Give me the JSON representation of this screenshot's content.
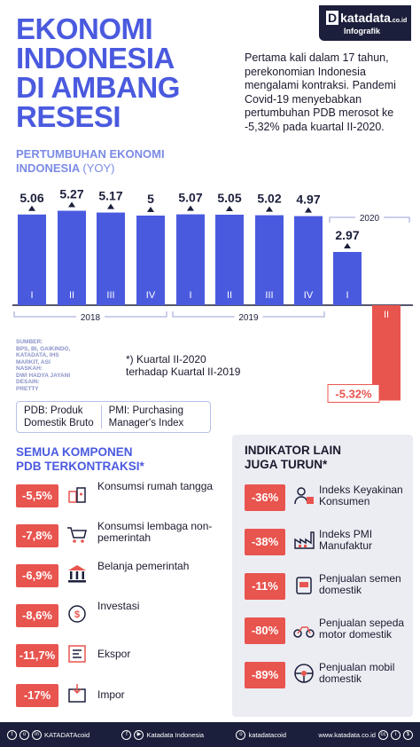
{
  "header": {
    "title_lines": [
      "EKONOMI",
      "INDONESIA",
      "DI AMBANG",
      "RESESI"
    ],
    "logo_brand": "katadata",
    "logo_suffix": ".co.id",
    "logo_sub": "Infografik",
    "intro": "Pertama kali dalam 17 tahun, perekonomian Indonesia mengalami kontraksi. Pandemi Covid-19 menyebabkan pertumbuhan PDB merosot ke -5,32% pada kuartal II-2020."
  },
  "chart_section": {
    "title_line1": "PERTUMBUHAN EKONOMI",
    "title_line2": "INDONESIA",
    "title_suffix": "(YOY)"
  },
  "chart_data": {
    "type": "bar",
    "title": "PERTUMBUHAN EKONOMI INDONESIA (YOY)",
    "categories": [
      "I",
      "II",
      "III",
      "IV",
      "I",
      "II",
      "III",
      "IV",
      "I",
      "II"
    ],
    "values": [
      5.06,
      5.27,
      5.17,
      5.0,
      5.07,
      5.05,
      5.02,
      4.97,
      2.97,
      -5.32
    ],
    "value_labels": [
      "5.06",
      "5.27",
      "5.17",
      "5",
      "5.07",
      "5.05",
      "5.02",
      "4.97",
      "2.97",
      "-5.32%"
    ],
    "groups": [
      {
        "label": "2018",
        "categories": [
          "I",
          "II",
          "III",
          "IV"
        ]
      },
      {
        "label": "2019",
        "categories": [
          "I",
          "II",
          "III",
          "IV"
        ]
      },
      {
        "label": "2020",
        "categories": [
          "I",
          "II"
        ]
      }
    ],
    "colors": {
      "positive": "#4a5adf",
      "negative": "#e8544e"
    },
    "note": "*) Kuartal II-2020 terhadap Kuartal II-2019"
  },
  "source_text": {
    "lines": [
      "SUMBER:",
      "BPS, BI, GAIKINDO,",
      "KATADATA, IHS",
      "MARKIT, ASI",
      "NASKAH:",
      "DWI HADYA JAYANI",
      "DESAIN:",
      "PRETTY"
    ]
  },
  "abbreviations": [
    {
      "line1": "PDB: Produk",
      "line2": "Domestik Bruto"
    },
    {
      "line1": "PMI: Purchasing",
      "line2": "Manager's Index"
    }
  ],
  "components": {
    "title_line1": "SEMUA KOMPONEN",
    "title_line2": "PDB TERKONTRAKSI*",
    "items": [
      {
        "value": "-5,5%",
        "label": "Konsumsi rumah tangga",
        "icon": "shopping-icon"
      },
      {
        "value": "-7,8%",
        "label": "Konsumsi lembaga non-pemerintah",
        "icon": "cart-icon"
      },
      {
        "value": "-6,9%",
        "label": "Belanja pemerintah",
        "icon": "government-building-icon"
      },
      {
        "value": "-8,6%",
        "label": "Investasi",
        "icon": "investment-icon"
      },
      {
        "value": "-11,7%",
        "label": "Ekspor",
        "icon": "export-icon"
      },
      {
        "value": "-17%",
        "label": "Impor",
        "icon": "import-icon"
      }
    ]
  },
  "indicators": {
    "title_line1": "INDIKATOR LAIN",
    "title_line2": "JUGA TURUN*",
    "items": [
      {
        "value": "-36%",
        "label": "Indeks Keyakinan Konsumen",
        "icon": "consumer-icon"
      },
      {
        "value": "-38%",
        "label": "Indeks PMI Manufaktur",
        "icon": "factory-icon"
      },
      {
        "value": "-11%",
        "label": "Penjualan semen domestik",
        "icon": "cement-icon"
      },
      {
        "value": "-80%",
        "label": "Penjualan sepeda motor domestik",
        "icon": "motorcycle-icon"
      },
      {
        "value": "-89%",
        "label": "Penjualan mobil domestik",
        "icon": "car-icon"
      }
    ]
  },
  "footer": {
    "handle1": "KATADATAcoid",
    "handle2": "Katadata Indonesia",
    "handle3": "katadatacoid",
    "website": "www.katadata.co.id"
  }
}
